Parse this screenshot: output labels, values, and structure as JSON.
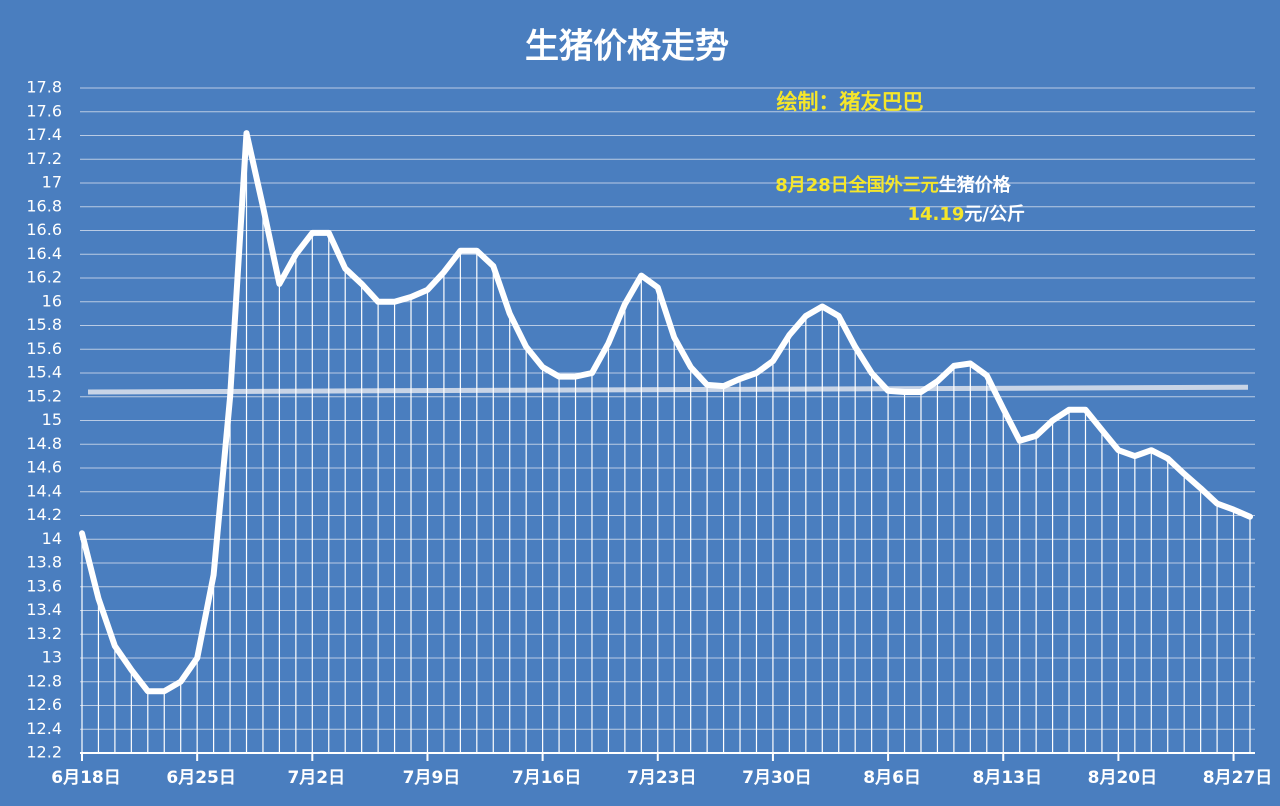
{
  "chart_data": {
    "type": "line",
    "title": "生猪价格走势",
    "annotations": [
      {
        "parts": [
          "绘制：猪友巴巴"
        ],
        "colors": [
          "#f5e62a"
        ]
      },
      {
        "parts": [
          "8月28日全国外三元",
          "生猪价格"
        ],
        "colors": [
          "#f5e62a",
          "#ffffff"
        ]
      },
      {
        "parts": [
          "14.19",
          "元/公斤"
        ],
        "colors": [
          "#f5e62a",
          "#ffffff"
        ]
      }
    ],
    "categories": [
      "6月18日",
      null,
      null,
      null,
      null,
      null,
      null,
      "6月25日",
      null,
      null,
      null,
      null,
      null,
      null,
      "7月2日",
      null,
      null,
      null,
      null,
      null,
      null,
      "7月9日",
      null,
      null,
      null,
      null,
      null,
      null,
      "7月16日",
      null,
      null,
      null,
      null,
      null,
      null,
      "7月23日",
      null,
      null,
      null,
      null,
      null,
      null,
      "7月30日",
      null,
      null,
      null,
      null,
      null,
      null,
      "8月6日",
      null,
      null,
      null,
      null,
      null,
      null,
      "8月13日",
      null,
      null,
      null,
      null,
      null,
      null,
      "8月20日",
      null,
      null,
      null,
      null,
      null,
      null,
      "8月27日",
      null
    ],
    "series": [
      {
        "color": "#ffffff",
        "values": [
          14.05,
          13.5,
          13.1,
          12.9,
          12.72,
          12.72,
          12.8,
          13.0,
          13.7,
          15.2,
          17.42,
          16.8,
          16.15,
          16.4,
          16.58,
          16.58,
          16.28,
          16.15,
          16.0,
          16.0,
          16.04,
          16.1,
          16.25,
          16.43,
          16.43,
          16.3,
          15.9,
          15.62,
          15.45,
          15.37,
          15.37,
          15.4,
          15.65,
          15.98,
          16.22,
          16.12,
          15.7,
          15.45,
          15.3,
          15.29,
          15.35,
          15.4,
          15.5,
          15.72,
          15.88,
          15.96,
          15.88,
          15.62,
          15.4,
          15.25,
          15.24,
          15.24,
          15.33,
          15.46,
          15.48,
          15.38,
          15.1,
          14.83,
          14.87,
          15.0,
          15.09,
          15.09,
          14.92,
          14.75,
          14.7,
          14.75,
          14.68,
          14.55,
          14.43,
          14.3,
          14.25,
          14.19
        ]
      }
    ],
    "reference_line": {
      "color": "#c8d4e6",
      "values": [
        15.24,
        15.28
      ]
    },
    "ylim": [
      12.2,
      17.8
    ],
    "yticks": [
      12.2,
      12.4,
      12.6,
      12.8,
      13,
      13.2,
      13.4,
      13.6,
      13.8,
      14,
      14.2,
      14.4,
      14.6,
      14.8,
      15,
      15.2,
      15.4,
      15.6,
      15.8,
      16,
      16.2,
      16.4,
      16.6,
      16.8,
      17,
      17.2,
      17.4,
      17.6,
      17.8
    ],
    "grid": true
  }
}
